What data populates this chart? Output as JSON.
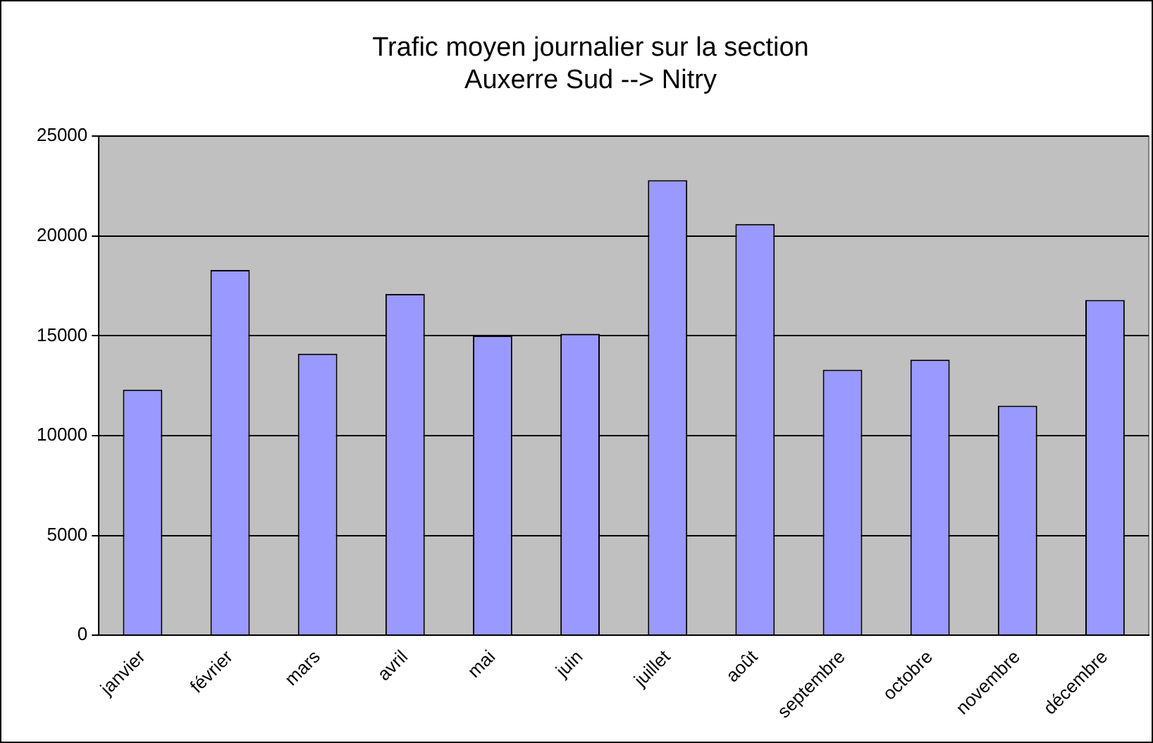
{
  "chart_data": {
    "type": "bar",
    "title": [
      "Trafic moyen journalier sur la section",
      "Auxerre Sud --> Nitry"
    ],
    "categories": [
      "janvier",
      "février",
      "mars",
      "avril",
      "mai",
      "juin",
      "juillet",
      "août",
      "septembre",
      "octobre",
      "novembre",
      "décembre"
    ],
    "values": [
      12300,
      18300,
      14100,
      17100,
      15000,
      15100,
      22800,
      20600,
      13300,
      13800,
      11500,
      16800
    ],
    "color": "#9999ff",
    "ylim": [
      0,
      25000
    ],
    "yticks": [
      0,
      5000,
      10000,
      15000,
      20000,
      25000
    ],
    "grid": "y",
    "legend": false
  }
}
